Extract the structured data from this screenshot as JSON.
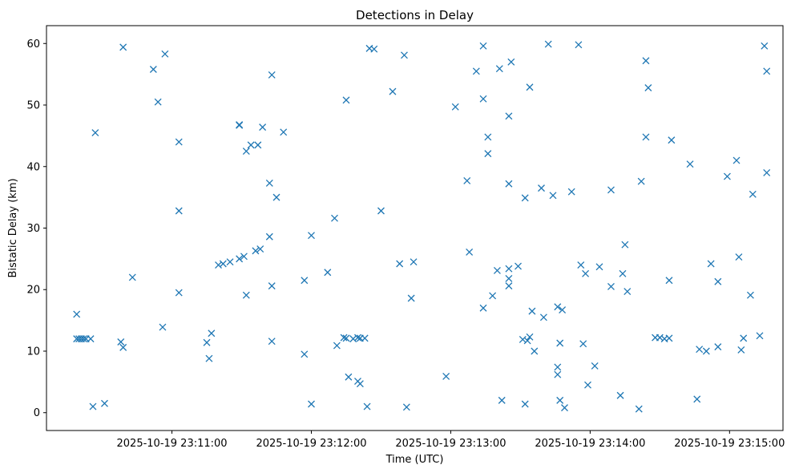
{
  "chart_data": {
    "type": "scatter",
    "title": "Detections in Delay",
    "xlabel": "Time (UTC)",
    "ylabel": "Bistatic Delay (km)",
    "xlim": [
      -54,
      263
    ],
    "ylim": [
      -2.9,
      62.9
    ],
    "marker": "x",
    "marker_color": "#1f77b4",
    "x_ticks": [
      {
        "value": 0,
        "label": "2025-10-19 23:11:00"
      },
      {
        "value": 60,
        "label": "2025-10-19 23:12:00"
      },
      {
        "value": 120,
        "label": "2025-10-19 23:13:00"
      },
      {
        "value": 180,
        "label": "2025-10-19 23:14:00"
      },
      {
        "value": 240,
        "label": "2025-10-19 23:15:00"
      }
    ],
    "y_ticks": [
      0,
      10,
      20,
      30,
      40,
      50,
      60
    ],
    "x_unit": "seconds after 2025-10-19 23:11:00 UTC",
    "points": [
      [
        -41.0,
        16.0
      ],
      [
        -41.0,
        12.0
      ],
      [
        -40.0,
        12.0
      ],
      [
        -39.0,
        12.0
      ],
      [
        -38.0,
        12.0
      ],
      [
        -37.0,
        12.0
      ],
      [
        -35.0,
        12.0
      ],
      [
        -34.0,
        1.0
      ],
      [
        -33.0,
        45.5
      ],
      [
        -29.0,
        1.5
      ],
      [
        -22.0,
        11.5
      ],
      [
        -21.0,
        10.6
      ],
      [
        -21.0,
        59.4
      ],
      [
        -17.0,
        22.0
      ],
      [
        -8.0,
        55.8
      ],
      [
        -6.0,
        50.5
      ],
      [
        -4.0,
        13.9
      ],
      [
        -3.0,
        58.3
      ],
      [
        3.0,
        44.0
      ],
      [
        3.0,
        32.8
      ],
      [
        3.0,
        19.5
      ],
      [
        15.0,
        11.4
      ],
      [
        16.0,
        8.8
      ],
      [
        17.0,
        12.9
      ],
      [
        20.0,
        24.0
      ],
      [
        22.0,
        24.2
      ],
      [
        25.0,
        24.5
      ],
      [
        29.0,
        25.0
      ],
      [
        29.0,
        46.8
      ],
      [
        29.0,
        46.7
      ],
      [
        31.0,
        25.4
      ],
      [
        32.0,
        42.5
      ],
      [
        32.0,
        19.1
      ],
      [
        34.0,
        43.5
      ],
      [
        36.0,
        26.3
      ],
      [
        37.0,
        43.5
      ],
      [
        38.0,
        26.6
      ],
      [
        39.0,
        46.4
      ],
      [
        42.0,
        37.3
      ],
      [
        42.0,
        28.6
      ],
      [
        43.0,
        54.9
      ],
      [
        43.0,
        20.6
      ],
      [
        43.0,
        11.6
      ],
      [
        45.0,
        35.0
      ],
      [
        48.0,
        45.6
      ],
      [
        57.0,
        21.5
      ],
      [
        57.0,
        9.5
      ],
      [
        60.0,
        28.8
      ],
      [
        60.0,
        1.4
      ],
      [
        67.0,
        22.8
      ],
      [
        70.0,
        31.6
      ],
      [
        71.0,
        10.9
      ],
      [
        74.0,
        12.2
      ],
      [
        75.0,
        12.1
      ],
      [
        75.0,
        50.8
      ],
      [
        76.0,
        5.8
      ],
      [
        78.0,
        12.0
      ],
      [
        80.0,
        12.2
      ],
      [
        80.0,
        5.1
      ],
      [
        81.0,
        4.7
      ],
      [
        81.0,
        12.1
      ],
      [
        83.0,
        12.1
      ],
      [
        84.0,
        1.0
      ],
      [
        85.0,
        59.2
      ],
      [
        87.0,
        59.1
      ],
      [
        90.0,
        32.8
      ],
      [
        95.0,
        52.2
      ],
      [
        98.0,
        24.2
      ],
      [
        100.0,
        58.1
      ],
      [
        101.0,
        0.9
      ],
      [
        103.0,
        18.6
      ],
      [
        104.0,
        24.5
      ],
      [
        118.0,
        5.9
      ],
      [
        122.0,
        49.7
      ],
      [
        127.0,
        37.7
      ],
      [
        128.0,
        26.1
      ],
      [
        131.0,
        55.5
      ],
      [
        134.0,
        59.6
      ],
      [
        134.0,
        51.0
      ],
      [
        134.0,
        17.0
      ],
      [
        136.0,
        44.8
      ],
      [
        136.0,
        42.1
      ],
      [
        138.0,
        19.0
      ],
      [
        140.0,
        23.1
      ],
      [
        141.0,
        55.9
      ],
      [
        142.0,
        2.0
      ],
      [
        145.0,
        48.2
      ],
      [
        145.0,
        37.2
      ],
      [
        145.0,
        23.4
      ],
      [
        145.0,
        21.8
      ],
      [
        145.0,
        20.6
      ],
      [
        146.0,
        57.0
      ],
      [
        149.0,
        23.8
      ],
      [
        151.0,
        11.9
      ],
      [
        152.0,
        34.9
      ],
      [
        152.0,
        1.4
      ],
      [
        153.0,
        11.7
      ],
      [
        154.0,
        52.9
      ],
      [
        154.0,
        12.3
      ],
      [
        155.0,
        16.5
      ],
      [
        156.0,
        10.0
      ],
      [
        159.0,
        36.5
      ],
      [
        160.0,
        15.5
      ],
      [
        162.0,
        59.9
      ],
      [
        164.0,
        35.3
      ],
      [
        166.0,
        7.4
      ],
      [
        166.0,
        6.2
      ],
      [
        166.0,
        17.2
      ],
      [
        167.0,
        2.0
      ],
      [
        167.0,
        11.3
      ],
      [
        168.0,
        16.7
      ],
      [
        169.0,
        0.8
      ],
      [
        172.0,
        35.9
      ],
      [
        175.0,
        59.8
      ],
      [
        176.0,
        24.0
      ],
      [
        177.0,
        11.2
      ],
      [
        178.0,
        22.6
      ],
      [
        179.0,
        4.5
      ],
      [
        182.0,
        7.6
      ],
      [
        184.0,
        23.7
      ],
      [
        189.0,
        20.5
      ],
      [
        189.0,
        36.2
      ],
      [
        193.0,
        2.8
      ],
      [
        194.0,
        22.6
      ],
      [
        195.0,
        27.3
      ],
      [
        196.0,
        19.7
      ],
      [
        201.0,
        0.6
      ],
      [
        202.0,
        37.6
      ],
      [
        204.0,
        57.2
      ],
      [
        204.0,
        44.8
      ],
      [
        205.0,
        52.8
      ],
      [
        208.0,
        12.2
      ],
      [
        210.0,
        12.2
      ],
      [
        212.0,
        12.0
      ],
      [
        214.0,
        12.1
      ],
      [
        214.0,
        21.5
      ],
      [
        215.0,
        44.3
      ],
      [
        223.0,
        40.4
      ],
      [
        226.0,
        2.2
      ],
      [
        227.0,
        10.3
      ],
      [
        230.0,
        10.0
      ],
      [
        232.0,
        24.2
      ],
      [
        235.0,
        21.3
      ],
      [
        235.0,
        10.7
      ],
      [
        239.0,
        38.4
      ],
      [
        243.0,
        41.0
      ],
      [
        244.0,
        25.3
      ],
      [
        245.0,
        10.2
      ],
      [
        246.0,
        12.1
      ],
      [
        249.0,
        19.1
      ],
      [
        250.0,
        35.5
      ],
      [
        253.0,
        12.5
      ],
      [
        255.0,
        59.6
      ],
      [
        256.0,
        55.5
      ],
      [
        256.0,
        39.0
      ]
    ]
  }
}
